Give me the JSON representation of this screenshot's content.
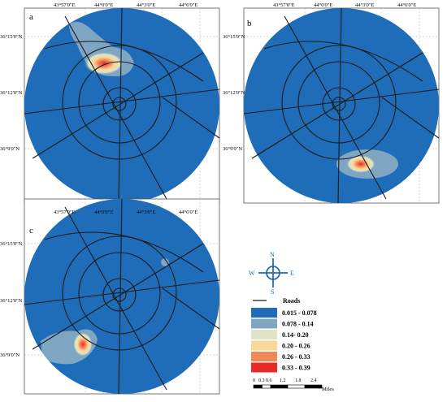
{
  "axis": {
    "x_ticks": [
      "43°57'0\"E",
      "44°0'0\"E",
      "44°3'0\"E",
      "44°6'0\"E"
    ],
    "y_ticks": [
      "36°15'0\"N",
      "36°12'0\"N",
      "36°9'0\"N"
    ]
  },
  "panels": [
    {
      "label": "a",
      "hotspot": "north-west, near upper road ring"
    },
    {
      "label": "b",
      "hotspot": "south edge"
    },
    {
      "label": "c",
      "hotspot": "south-west edge"
    }
  ],
  "compass": {
    "north": "N",
    "south": "S",
    "east": "E",
    "west": "W"
  },
  "legend": {
    "roads_label": "Roads",
    "classes": [
      {
        "range": "0.015 - 0.078",
        "color": "#1f6db8"
      },
      {
        "range": "0.078 - 0.14",
        "color": "#7ea6c2"
      },
      {
        "range": "0.14- 0.20",
        "color": "#dfe4c8"
      },
      {
        "range": "0.20 - 0.26",
        "color": "#f7d79a"
      },
      {
        "range": "0.26 - 0.33",
        "color": "#f2875a"
      },
      {
        "range": "0.33 - 0.39",
        "color": "#e52c26"
      }
    ]
  },
  "scalebar": {
    "ticks": [
      "0",
      "0.3",
      "0.6",
      "1.2",
      "1.8",
      "2.4"
    ],
    "unit": "Miles"
  },
  "colors": {
    "base": "#1f6db8",
    "road": "#1a1a1a",
    "frame": "#555555",
    "compass": "#1f6db8"
  }
}
